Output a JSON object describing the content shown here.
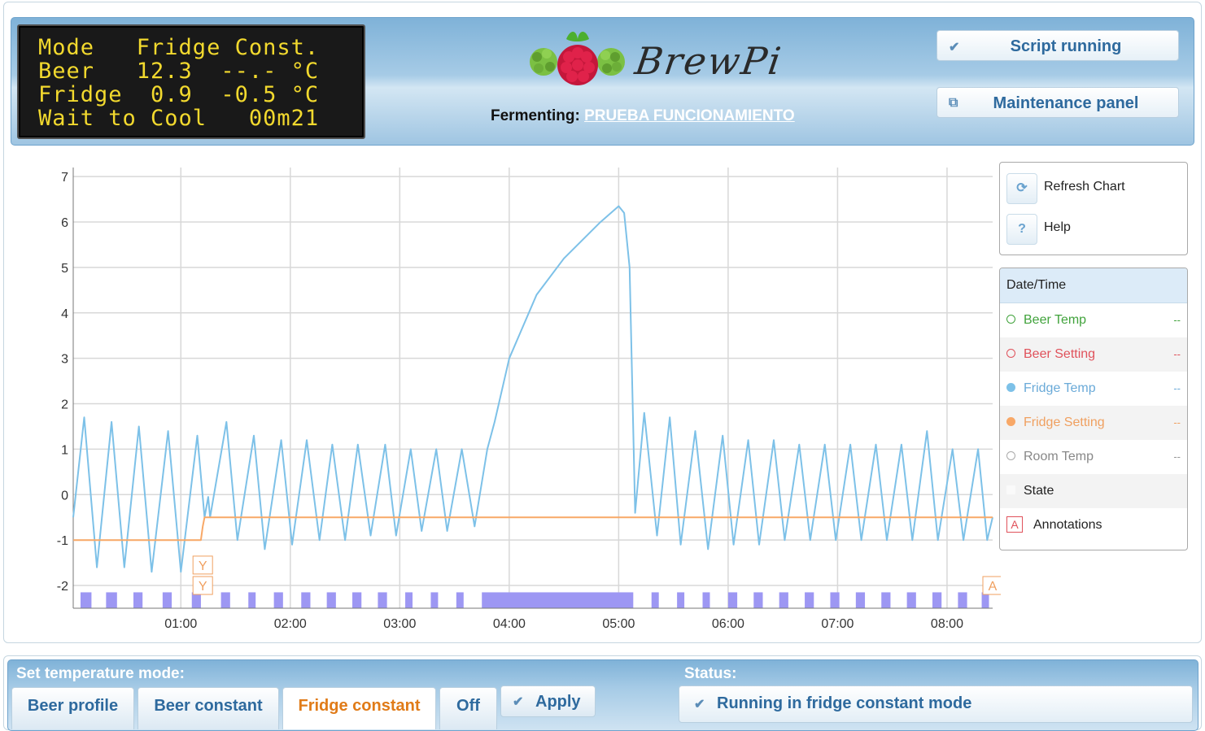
{
  "lcd": {
    "lines": [
      "Mode   Fridge Const.",
      "Beer   12.3  --.- °C",
      "Fridge  0.9  -0.5 °C",
      "Wait to Cool   00m21"
    ]
  },
  "header": {
    "logo_text": "BrewPi",
    "fermenting_label": "Fermenting:",
    "beer_name": "PRUEBA FUNCIONAMIENTO",
    "script_status": "Script running",
    "maintenance_label": "Maintenance panel"
  },
  "chart_controls": {
    "refresh_label": "Refresh Chart",
    "help_label": "Help"
  },
  "legend": {
    "header": "Date/Time",
    "items": [
      {
        "name": "Beer Temp",
        "value": "--",
        "color": "#41a33c"
      },
      {
        "name": "Beer Setting",
        "value": "--",
        "color": "#e0525b"
      },
      {
        "name": "Fridge Temp",
        "value": "--",
        "color": "#7dc1e8"
      },
      {
        "name": "Fridge Setting",
        "value": "--",
        "color": "#f8a867"
      },
      {
        "name": "Room Temp",
        "value": "--",
        "color": "#aaaaaa"
      },
      {
        "name": "State",
        "value": "",
        "color": "#f0f0f0"
      },
      {
        "name": "Annotations",
        "value": "",
        "color": "#e0525b"
      }
    ],
    "annotation_marker": "A"
  },
  "chart_data": {
    "type": "line",
    "title": "",
    "xlabel": "",
    "ylabel": "",
    "x_range": [
      "00:01",
      "08:25"
    ],
    "ylim": [
      -2.5,
      7.2
    ],
    "y_ticks": [
      7,
      6,
      5,
      4,
      3,
      2,
      1,
      0,
      -1,
      -2
    ],
    "x_ticks": [
      "01:00",
      "02:00",
      "03:00",
      "04:00",
      "05:00",
      "06:00",
      "07:00",
      "08:00"
    ],
    "grid": true,
    "series": [
      {
        "name": "Fridge Temp",
        "color": "#7dc1e8",
        "points": [
          [
            "00:01",
            -0.5
          ],
          [
            "00:07",
            1.7
          ],
          [
            "00:14",
            -1.6
          ],
          [
            "00:22",
            1.6
          ],
          [
            "00:29",
            -1.6
          ],
          [
            "00:37",
            1.5
          ],
          [
            "00:44",
            -1.7
          ],
          [
            "00:53",
            1.4
          ],
          [
            "01:00",
            -1.7
          ],
          [
            "01:09",
            1.3
          ],
          [
            "01:13",
            -0.5
          ],
          [
            "01:15",
            -0.05
          ],
          [
            "01:16",
            -0.5
          ],
          [
            "01:25",
            1.6
          ],
          [
            "01:31",
            -1.0
          ],
          [
            "01:40",
            1.3
          ],
          [
            "01:46",
            -1.2
          ],
          [
            "01:55",
            1.2
          ],
          [
            "02:01",
            -1.1
          ],
          [
            "02:09",
            1.2
          ],
          [
            "02:16",
            -1.0
          ],
          [
            "02:23",
            1.1
          ],
          [
            "02:30",
            -1.0
          ],
          [
            "02:37",
            1.1
          ],
          [
            "02:44",
            -0.9
          ],
          [
            "02:52",
            1.1
          ],
          [
            "02:58",
            -0.9
          ],
          [
            "03:06",
            1.0
          ],
          [
            "03:12",
            -0.8
          ],
          [
            "03:20",
            1.0
          ],
          [
            "03:26",
            -0.8
          ],
          [
            "03:34",
            1.0
          ],
          [
            "03:41",
            -0.7
          ],
          [
            "03:48",
            1.0
          ],
          [
            "03:52",
            1.6
          ],
          [
            "04:00",
            3.0
          ],
          [
            "04:15",
            4.4
          ],
          [
            "04:30",
            5.2
          ],
          [
            "04:50",
            6.0
          ],
          [
            "05:00",
            6.35
          ],
          [
            "05:03",
            6.2
          ],
          [
            "05:06",
            5.0
          ],
          [
            "05:09",
            -0.4
          ],
          [
            "05:14",
            1.8
          ],
          [
            "05:21",
            -0.9
          ],
          [
            "05:28",
            1.7
          ],
          [
            "05:34",
            -1.1
          ],
          [
            "05:42",
            1.4
          ],
          [
            "05:49",
            -1.2
          ],
          [
            "05:57",
            1.3
          ],
          [
            "06:03",
            -1.1
          ],
          [
            "06:11",
            1.2
          ],
          [
            "06:17",
            -1.1
          ],
          [
            "06:25",
            1.2
          ],
          [
            "06:31",
            -1.0
          ],
          [
            "06:39",
            1.1
          ],
          [
            "06:45",
            -1.0
          ],
          [
            "06:53",
            1.1
          ],
          [
            "06:59",
            -1.0
          ],
          [
            "07:07",
            1.1
          ],
          [
            "07:13",
            -1.0
          ],
          [
            "07:21",
            1.1
          ],
          [
            "07:27",
            -1.0
          ],
          [
            "07:35",
            1.1
          ],
          [
            "07:41",
            -1.0
          ],
          [
            "07:49",
            1.4
          ],
          [
            "07:55",
            -1.0
          ],
          [
            "08:03",
            1.0
          ],
          [
            "08:09",
            -1.0
          ],
          [
            "08:17",
            1.0
          ],
          [
            "08:22",
            -1.0
          ],
          [
            "08:25",
            -0.5
          ]
        ]
      },
      {
        "name": "Fridge Setting",
        "color": "#f8a867",
        "points": [
          [
            "00:01",
            -1.0
          ],
          [
            "01:11",
            -1.0
          ],
          [
            "01:12",
            -0.7
          ],
          [
            "01:13",
            -0.5
          ],
          [
            "08:25",
            -0.5
          ]
        ]
      }
    ],
    "state_band": {
      "y_range": [
        -2.5,
        -2.15
      ],
      "segments": [
        [
          "00:05",
          "00:11"
        ],
        [
          "00:19",
          "00:25"
        ],
        [
          "00:34",
          "00:39"
        ],
        [
          "00:50",
          "00:55"
        ],
        [
          "01:06",
          "01:11"
        ],
        [
          "01:22",
          "01:27"
        ],
        [
          "01:37",
          "01:41"
        ],
        [
          "01:51",
          "01:56"
        ],
        [
          "02:06",
          "02:11"
        ],
        [
          "02:20",
          "02:25"
        ],
        [
          "02:34",
          "02:39"
        ],
        [
          "02:48",
          "02:53"
        ],
        [
          "03:03",
          "03:07"
        ],
        [
          "03:17",
          "03:21"
        ],
        [
          "03:31",
          "03:35"
        ],
        [
          "03:45",
          "05:08"
        ],
        [
          "05:18",
          "05:22"
        ],
        [
          "05:32",
          "05:36"
        ],
        [
          "05:46",
          "05:50"
        ],
        [
          "06:00",
          "06:05"
        ],
        [
          "06:14",
          "06:19"
        ],
        [
          "06:28",
          "06:33"
        ],
        [
          "06:42",
          "06:47"
        ],
        [
          "06:56",
          "07:01"
        ],
        [
          "07:10",
          "07:15"
        ],
        [
          "07:24",
          "07:29"
        ],
        [
          "07:38",
          "07:43"
        ],
        [
          "07:52",
          "07:57"
        ],
        [
          "08:06",
          "08:11"
        ],
        [
          "08:19",
          "08:23"
        ]
      ],
      "color": "#9d97f3"
    },
    "annotations": [
      {
        "time": "01:12",
        "y": -1.55,
        "label": "Y"
      },
      {
        "time": "01:12",
        "y": -2.0,
        "label": "Y"
      },
      {
        "time": "08:25",
        "y": -2.0,
        "label": "A"
      }
    ]
  },
  "mode_panel": {
    "title": "Set temperature mode:",
    "modes": [
      "Beer profile",
      "Beer constant",
      "Fridge constant",
      "Off"
    ],
    "active_mode": "Fridge constant",
    "apply_label": "Apply"
  },
  "status_panel": {
    "title": "Status:",
    "message": "Running in fridge constant mode"
  }
}
